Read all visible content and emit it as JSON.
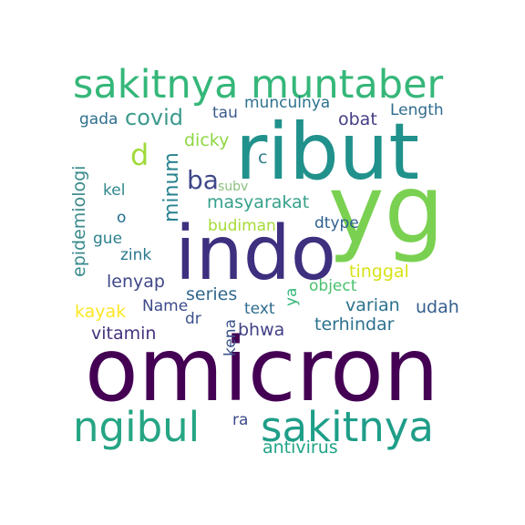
{
  "word_cloud": {
    "words": [
      {
        "id": "omicron",
        "text": "omicron",
        "color": "#440154"
      },
      {
        "id": "ribut",
        "text": "ribut",
        "color": "#21918c"
      },
      {
        "id": "yg",
        "text": "yg",
        "color": "#7ad151"
      },
      {
        "id": "indo",
        "text": "indo",
        "color": "#3e2f7f"
      },
      {
        "id": "sakitnya-muntaber",
        "text": "sakitnya muntaber",
        "color": "#35b779"
      },
      {
        "id": "ngibul",
        "text": "ngibul",
        "color": "#25a584"
      },
      {
        "id": "sakitnya",
        "text": "sakitnya",
        "color": "#1f9e89"
      },
      {
        "id": "covid",
        "text": "covid",
        "color": "#3b9a8c"
      },
      {
        "id": "gada",
        "text": "gada",
        "color": "#2e6f8e"
      },
      {
        "id": "tau",
        "text": "tau",
        "color": "#3b5a8c"
      },
      {
        "id": "munculnya",
        "text": "munculnya",
        "color": "#2c728e"
      },
      {
        "id": "obat",
        "text": "obat",
        "color": "#433e85"
      },
      {
        "id": "length",
        "text": "Length",
        "color": "#2f6b8e"
      },
      {
        "id": "d",
        "text": "d",
        "color": "#a0da39"
      },
      {
        "id": "epidemiologi",
        "text": "epidemiologi",
        "color": "#3b8a8c"
      },
      {
        "id": "dicky",
        "text": "dicky",
        "color": "#8fd744"
      },
      {
        "id": "c",
        "text": "c",
        "color": "#2f7c8e"
      },
      {
        "id": "minum",
        "text": "minum",
        "color": "#26828e"
      },
      {
        "id": "ba",
        "text": "ba",
        "color": "#3f4889"
      },
      {
        "id": "subv",
        "text": "subv",
        "color": "#8bbf7f"
      },
      {
        "id": "kel",
        "text": "kel",
        "color": "#2d878e"
      },
      {
        "id": "masyarakat",
        "text": "masyarakat",
        "color": "#35a08a"
      },
      {
        "id": "o",
        "text": "o",
        "color": "#1f6e8e"
      },
      {
        "id": "budiman",
        "text": "budiman",
        "color": "#a5db36"
      },
      {
        "id": "dtype",
        "text": "dtype",
        "color": "#2e5f8e"
      },
      {
        "id": "gue",
        "text": "gue",
        "color": "#2d818e"
      },
      {
        "id": "zink",
        "text": "zink",
        "color": "#2a788e"
      },
      {
        "id": "tinggal",
        "text": "tinggal",
        "color": "#d8e219"
      },
      {
        "id": "lenyap",
        "text": "lenyap",
        "color": "#3f4788"
      },
      {
        "id": "object",
        "text": "object",
        "color": "#4ac16d"
      },
      {
        "id": "series",
        "text": "series",
        "color": "#31688e"
      },
      {
        "id": "ya",
        "text": "ya",
        "color": "#35b779"
      },
      {
        "id": "name",
        "text": "Name",
        "color": "#3e4a89"
      },
      {
        "id": "kayak",
        "text": "kayak",
        "color": "#fde725"
      },
      {
        "id": "text",
        "text": "text",
        "color": "#2f6c8e"
      },
      {
        "id": "varian",
        "text": "varian",
        "color": "#2c728e"
      },
      {
        "id": "udah",
        "text": "udah",
        "color": "#355f8d"
      },
      {
        "id": "dr",
        "text": "dr",
        "color": "#3b528b"
      },
      {
        "id": "kena",
        "text": "kena",
        "color": "#3b528b"
      },
      {
        "id": "bhwa",
        "text": "bhwa",
        "color": "#424186"
      },
      {
        "id": "terhindar",
        "text": "terhindar",
        "color": "#2c718e"
      },
      {
        "id": "vitamin",
        "text": "vitamin",
        "color": "#46327e"
      },
      {
        "id": "ra",
        "text": "ra",
        "color": "#3e4989"
      },
      {
        "id": "antivirus",
        "text": "antivirus",
        "color": "#20a386"
      }
    ]
  }
}
